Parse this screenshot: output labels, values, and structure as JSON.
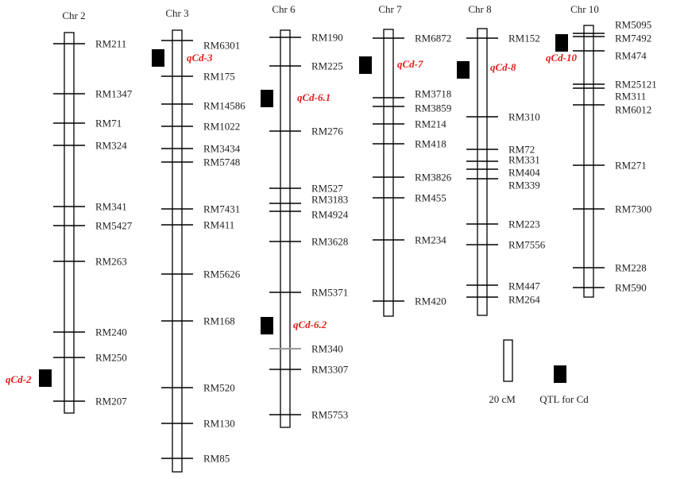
{
  "colors": {
    "chromosome_outline": "#000000",
    "marker_tick": "#000000",
    "marker_tick_gray": "#999999",
    "qtl_box": "#000000",
    "qtl_label": "#e0201b",
    "text": "#222222"
  },
  "chromosomes": [
    {
      "name": "Chr 2",
      "markers": [
        {
          "label": "RM211"
        },
        {
          "label": "RM1347"
        },
        {
          "label": "RM71"
        },
        {
          "label": "RM324"
        },
        {
          "label": "RM341"
        },
        {
          "label": "RM5427"
        },
        {
          "label": "RM263"
        },
        {
          "label": "RM240"
        },
        {
          "label": "RM250"
        },
        {
          "label": "RM207"
        }
      ],
      "qtls": [
        {
          "label": "qCd-2",
          "side": "left"
        }
      ]
    },
    {
      "name": "Chr 3",
      "markers": [
        {
          "label": "RM6301"
        },
        {
          "label": "RM175"
        },
        {
          "label": "RM14586"
        },
        {
          "label": "RM1022"
        },
        {
          "label": "RM3434"
        },
        {
          "label": "RM5748"
        },
        {
          "label": "RM7431"
        },
        {
          "label": "RM411"
        },
        {
          "label": "RM5626"
        },
        {
          "label": "RM168"
        },
        {
          "label": "RM520"
        },
        {
          "label": "RM130"
        },
        {
          "label": "RM85"
        }
      ],
      "qtls": [
        {
          "label": "qCd-3",
          "side": "right"
        }
      ]
    },
    {
      "name": "Chr 6",
      "markers": [
        {
          "label": "RM190"
        },
        {
          "label": "RM225"
        },
        {
          "label": "RM276"
        },
        {
          "label": "RM527"
        },
        {
          "label": "RM3183"
        },
        {
          "label": "RM4924"
        },
        {
          "label": "RM3628"
        },
        {
          "label": "RM5371"
        },
        {
          "label": "RM340"
        },
        {
          "label": "RM3307"
        },
        {
          "label": "RM5753"
        }
      ],
      "qtls": [
        {
          "label": "qCd-6.1",
          "side": "right"
        },
        {
          "label": "qCd-6.2",
          "side": "right"
        }
      ]
    },
    {
      "name": "Chr 7",
      "markers": [
        {
          "label": "RM6872"
        },
        {
          "label": "RM3718"
        },
        {
          "label": "RM3859"
        },
        {
          "label": "RM214"
        },
        {
          "label": "RM418"
        },
        {
          "label": "RM3826"
        },
        {
          "label": "RM455"
        },
        {
          "label": "RM234"
        },
        {
          "label": "RM420"
        }
      ],
      "qtls": [
        {
          "label": "qCd-7",
          "side": "right"
        }
      ]
    },
    {
      "name": "Chr 8",
      "markers": [
        {
          "label": "RM152"
        },
        {
          "label": "RM310"
        },
        {
          "label": "RM72"
        },
        {
          "label": "RM331"
        },
        {
          "label": "RM404"
        },
        {
          "label": "RM339"
        },
        {
          "label": "RM223"
        },
        {
          "label": "RM7556"
        },
        {
          "label": "RM447"
        },
        {
          "label": "RM264"
        }
      ],
      "qtls": [
        {
          "label": "qCd-8",
          "side": "right"
        }
      ]
    },
    {
      "name": "Chr 10",
      "markers": [
        {
          "label": "RM5095"
        },
        {
          "label": "RM7492"
        },
        {
          "label": "RM474"
        },
        {
          "label": "RM25121"
        },
        {
          "label": "RM311"
        },
        {
          "label": "RM6012"
        },
        {
          "label": "RM271"
        },
        {
          "label": "RM7300"
        },
        {
          "label": "RM228"
        },
        {
          "label": "RM590"
        }
      ],
      "qtls": [
        {
          "label": "qCd-10",
          "side": "below"
        }
      ]
    }
  ],
  "legend": {
    "scale_label": "20 cM",
    "qtl_label": "QTL for Cd"
  }
}
